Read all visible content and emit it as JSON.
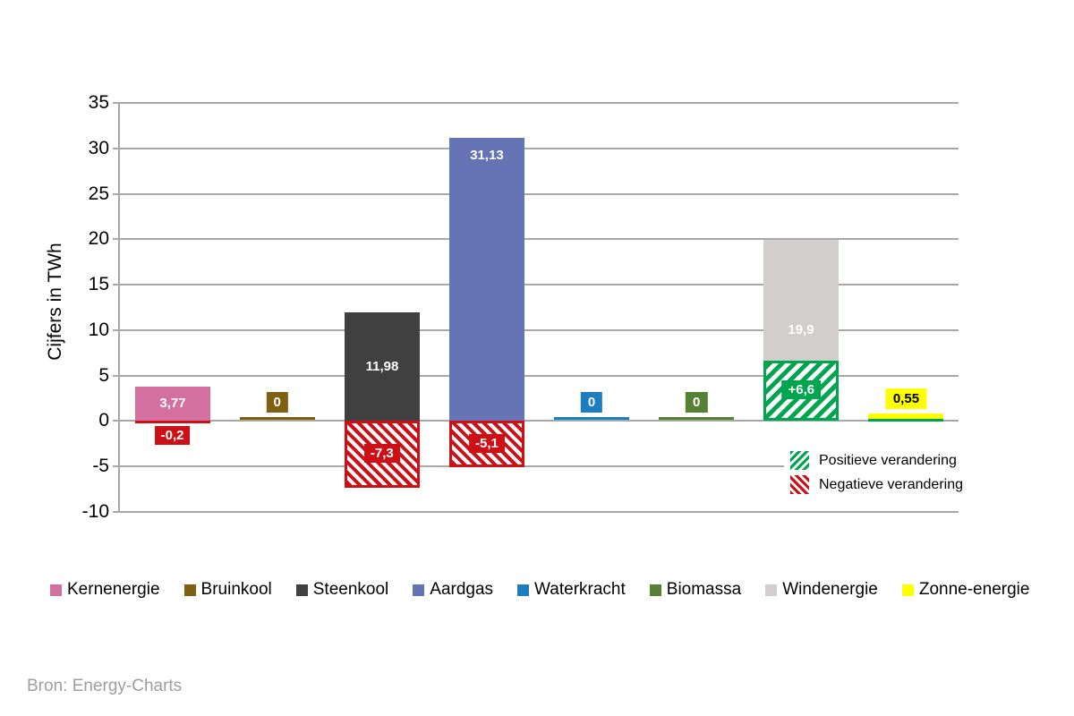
{
  "chart_data": {
    "type": "bar",
    "title": "",
    "ylabel": "Cijfers in TWh",
    "ylim": [
      -10,
      35
    ],
    "ytick_step": 5,
    "grid": true,
    "legend_position": "bottom",
    "categories": [
      "Kernenergie",
      "Bruinkool",
      "Steenkool",
      "Aardgas",
      "Waterkracht",
      "Biomassa",
      "Windenergie",
      "Zonne-energie"
    ],
    "series": [
      {
        "name": "Kernenergie",
        "color": "#d4709f",
        "value": 3.77,
        "value_label": "3,77",
        "value_label_color": "#ffffff",
        "value_label_pos": "center",
        "change": -0.2,
        "change_label": "-0,2"
      },
      {
        "name": "Bruinkool",
        "color": "#7f5f10",
        "value": 0,
        "value_label": "0",
        "value_label_color": "#ffffff",
        "value_label_pos": "above",
        "change": 0,
        "change_label": ""
      },
      {
        "name": "Steenkool",
        "color": "#404040",
        "value": 11.98,
        "value_label": "11,98",
        "value_label_color": "#ffffff",
        "value_label_pos": "center",
        "change": -7.3,
        "change_label": "-7,3"
      },
      {
        "name": "Aardgas",
        "color": "#6673b5",
        "value": 31.13,
        "value_label": "31,13",
        "value_label_color": "#ffffff",
        "value_label_pos": "top",
        "change": -5.1,
        "change_label": "-5,1"
      },
      {
        "name": "Waterkracht",
        "color": "#1d7dc1",
        "value": 0,
        "value_label": "0",
        "value_label_color": "#ffffff",
        "value_label_pos": "above",
        "change": 0,
        "change_label": ""
      },
      {
        "name": "Biomassa",
        "color": "#568135",
        "value": 0,
        "value_label": "0",
        "value_label_color": "#ffffff",
        "value_label_pos": "above",
        "change": 0,
        "change_label": ""
      },
      {
        "name": "Windenergie",
        "color": "#d2cece",
        "value": 19.9,
        "value_label": "19,9",
        "value_label_color": "#ffffff",
        "value_label_pos": "center",
        "change": 6.6,
        "change_label": "+6,6"
      },
      {
        "name": "Zonne-energie",
        "color": "#ffff00",
        "value": 0.55,
        "value_label": "0,55",
        "value_label_color": "#000000",
        "value_label_pos": "above",
        "change": 0.3,
        "change_label": ""
      }
    ],
    "change_colors": {
      "positive": "#00a54f",
      "negative": "#cc1016"
    },
    "change_legend": {
      "positive": "Positieve verandering",
      "negative": "Negatieve verandering"
    },
    "grid_color": "#a8a8a8"
  },
  "source": "Bron: Energy-Charts"
}
